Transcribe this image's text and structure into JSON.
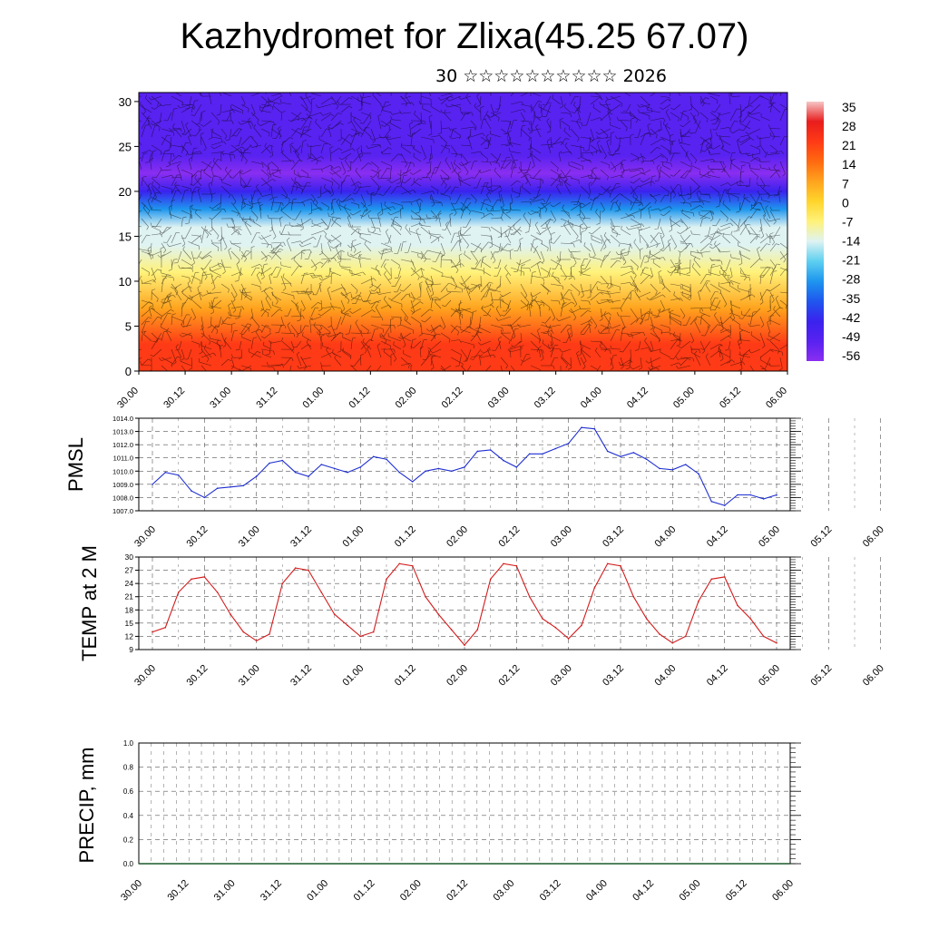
{
  "header": {
    "title": "Kazhydromet for Zlixa(45.25 67.07)",
    "subtitle": "30 ☆☆☆☆☆☆☆☆☆☆ 2026"
  },
  "chart_data": [
    {
      "type": "heatmap",
      "name": "vertical-cross-section",
      "title": "",
      "xlabel": "",
      "ylabel": "",
      "x_tick_labels": [
        "30.00",
        "30.12",
        "31.00",
        "31.12",
        "01.00",
        "01.12",
        "02.00",
        "02.12",
        "03.00",
        "03.12",
        "04.00",
        "04.12",
        "05.00",
        "05.12",
        "06.00"
      ],
      "y_ticks": [
        0,
        5,
        10,
        15,
        20,
        25,
        30
      ],
      "ylim": [
        0,
        31
      ],
      "overlay": "wind barbs",
      "colorbar": {
        "labels": [
          "35",
          "28",
          "21",
          "14",
          "7",
          "0",
          "-7",
          "-14",
          "-21",
          "-28",
          "-35",
          "-42",
          "-49",
          "-56"
        ],
        "colors": [
          "#f6c5c5",
          "#e81d1d",
          "#ff3a16",
          "#ff6a10",
          "#ffa41e",
          "#ffd52c",
          "#fff27a",
          "#dff3f2",
          "#5ed0f0",
          "#1e96ee",
          "#1f57ee",
          "#3a22ee",
          "#5822f0",
          "#8a2ef0"
        ]
      },
      "temperature_profile": [
        {
          "level": 0,
          "value": 24
        },
        {
          "level": 3,
          "value": 21
        },
        {
          "level": 7,
          "value": 10
        },
        {
          "level": 11,
          "value": -4
        },
        {
          "level": 14,
          "value": -12
        },
        {
          "level": 16,
          "value": -16
        },
        {
          "level": 18,
          "value": -28
        },
        {
          "level": 20,
          "value": -40
        },
        {
          "level": 22,
          "value": -56
        },
        {
          "level": 24,
          "value": -50
        },
        {
          "level": 27,
          "value": -48
        },
        {
          "level": 31,
          "value": -49
        }
      ]
    },
    {
      "type": "line",
      "name": "pmsl",
      "ylabel": "PMSL",
      "ylim": [
        1007.0,
        1014.0
      ],
      "y_tick_labels": [
        "1014.0",
        "1013.0",
        "1012.0",
        "1011.0",
        "1010.0",
        "1009.0",
        "1008.0",
        "1007.0"
      ],
      "x_tick_labels": [
        "30.00",
        "30.12",
        "31.00",
        "31.12",
        "01.00",
        "01.12",
        "02.00",
        "02.12",
        "03.00",
        "03.12",
        "04.00",
        "04.12",
        "05.00",
        "05.12",
        "06.00"
      ],
      "line_color": "#1f2fd0",
      "x": [
        0,
        3,
        6,
        9,
        12,
        15,
        18,
        21,
        24,
        27,
        30,
        33,
        36,
        39,
        42,
        45,
        48,
        51,
        54,
        57,
        60,
        63,
        66,
        69,
        72,
        75,
        78,
        81,
        84,
        87,
        90,
        93,
        96,
        99,
        102,
        105,
        108,
        111,
        114,
        117,
        120,
        123,
        126,
        129,
        132,
        135,
        138,
        141,
        144
      ],
      "values": [
        1009.0,
        1009.9,
        1009.7,
        1008.5,
        1008.0,
        1008.7,
        1008.8,
        1008.9,
        1009.6,
        1010.6,
        1010.8,
        1009.9,
        1009.6,
        1010.5,
        1010.2,
        1009.9,
        1010.3,
        1011.1,
        1010.9,
        1009.9,
        1009.2,
        1010.0,
        1010.2,
        1010.0,
        1010.3,
        1011.5,
        1011.6,
        1010.8,
        1010.3,
        1011.3,
        1011.3,
        1011.7,
        1012.1,
        1013.3,
        1013.2,
        1011.5,
        1011.1,
        1011.4,
        1010.9,
        1010.2,
        1010.1,
        1010.5,
        1009.8,
        1007.7,
        1007.4,
        1008.2,
        1008.2,
        1007.9,
        1008.2
      ]
    },
    {
      "type": "line",
      "name": "temp-2m",
      "ylabel": "TEMP at 2 M",
      "ylim": [
        9,
        30
      ],
      "y_tick_labels": [
        "30",
        "27",
        "24",
        "21",
        "18",
        "15",
        "12",
        "9"
      ],
      "x_tick_labels": [
        "30.00",
        "30.12",
        "31.00",
        "31.12",
        "01.00",
        "01.12",
        "02.00",
        "02.12",
        "03.00",
        "03.12",
        "04.00",
        "04.12",
        "05.00",
        "05.12",
        "06.00"
      ],
      "line_color": "#d31c1c",
      "x": [
        0,
        3,
        6,
        9,
        12,
        15,
        18,
        21,
        24,
        27,
        30,
        33,
        36,
        39,
        42,
        45,
        48,
        51,
        54,
        57,
        60,
        63,
        66,
        69,
        72,
        75,
        78,
        81,
        84,
        87,
        90,
        93,
        96,
        99,
        102,
        105,
        108,
        111,
        114,
        117,
        120,
        123,
        126,
        129,
        132,
        135,
        138,
        141,
        144
      ],
      "values": [
        13,
        14,
        22,
        25,
        25.5,
        22,
        17,
        13,
        11,
        12.5,
        24,
        27.5,
        27,
        22,
        17,
        14.5,
        12,
        13,
        25,
        28.5,
        28,
        21,
        17,
        13.5,
        10,
        13.5,
        25,
        28.5,
        28,
        21,
        16,
        14,
        11.5,
        14.5,
        23,
        28.5,
        28,
        21,
        16,
        12.5,
        10.5,
        12,
        20,
        25,
        25.5,
        19,
        16,
        12,
        10.5
      ]
    },
    {
      "type": "line",
      "name": "precip",
      "ylabel": "PRECIP, mm",
      "ylim": [
        0.0,
        1.0
      ],
      "y_tick_labels": [
        "1.0",
        "0.8",
        "0.6",
        "0.4",
        "0.2",
        "0.0"
      ],
      "x_tick_labels": [
        "30.00",
        "30.12",
        "31.00",
        "31.12",
        "01.00",
        "01.12",
        "02.00",
        "02.12",
        "03.00",
        "03.12",
        "04.00",
        "04.12",
        "05.00",
        "05.12",
        "06.00"
      ],
      "line_color": "#1a5a2a",
      "x": [
        0,
        156
      ],
      "values": [
        0.0,
        0.0
      ]
    }
  ]
}
